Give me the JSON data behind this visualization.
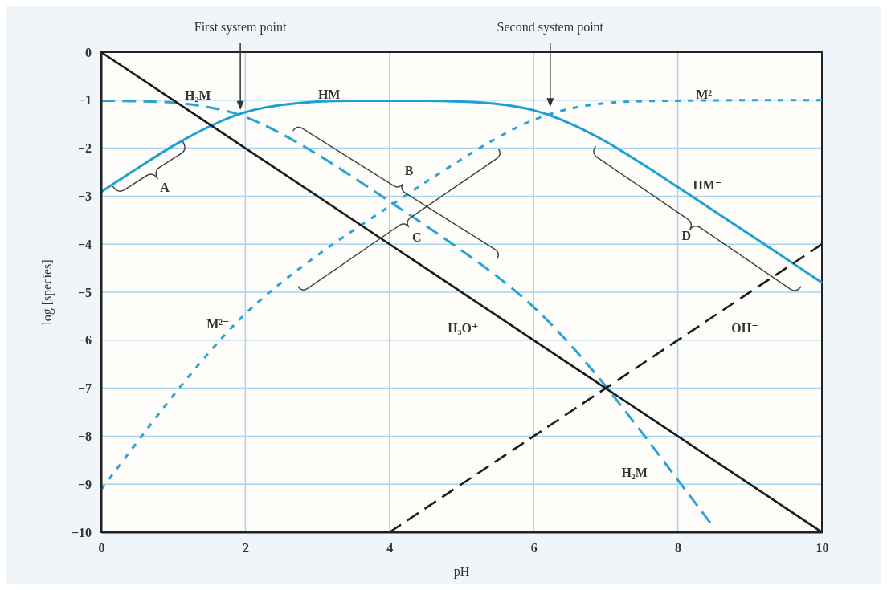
{
  "chart_data": {
    "type": "line",
    "xlabel": "pH",
    "ylabel": "log [species]",
    "xlim": [
      0,
      10
    ],
    "xticks": [
      0,
      2,
      4,
      6,
      8,
      10
    ],
    "ylim": [
      -10,
      0
    ],
    "yticks": [
      0,
      -1,
      -2,
      -3,
      -4,
      -5,
      -6,
      -7,
      -8,
      -9,
      -10
    ],
    "grid": true,
    "series": [
      {
        "name": "H₂M",
        "color": "#2aa3d4",
        "line_style": "dashed",
        "x": [
          0,
          0.5,
          1,
          1.5,
          1.75,
          2,
          2.25,
          2.5,
          3,
          3.5,
          4,
          4.5,
          5,
          5.5,
          6,
          6.25,
          6.5,
          7,
          7.5,
          8,
          8.45
        ],
        "values": [
          -1.01,
          -1.02,
          -1.05,
          -1.15,
          -1.23,
          -1.35,
          -1.51,
          -1.7,
          -2.13,
          -2.61,
          -3.11,
          -3.61,
          -4.13,
          -4.68,
          -5.31,
          -5.68,
          -6.08,
          -6.96,
          -7.92,
          -8.91,
          -9.8
        ]
      },
      {
        "name": "HM⁻",
        "color": "#1f9fd2",
        "line_style": "solid",
        "x": [
          0,
          0.5,
          1,
          1.5,
          1.75,
          2,
          2.25,
          2.5,
          3,
          3.5,
          4,
          4.5,
          5,
          5.5,
          6,
          6.25,
          6.5,
          7,
          7.5,
          8,
          9,
          10
        ],
        "values": [
          -2.91,
          -2.42,
          -1.95,
          -1.55,
          -1.38,
          -1.25,
          -1.16,
          -1.1,
          -1.03,
          -1.01,
          -1.01,
          -1.01,
          -1.03,
          -1.08,
          -1.21,
          -1.33,
          -1.48,
          -1.86,
          -2.32,
          -2.81,
          -3.8,
          -4.8
        ]
      },
      {
        "name": "M²⁻",
        "color": "#2aa3d4",
        "line_style": "dotted",
        "x": [
          0,
          0.5,
          1,
          1.5,
          1.75,
          2,
          2.25,
          2.5,
          3,
          3.5,
          4,
          4.5,
          5,
          5.5,
          6,
          6.25,
          6.5,
          7,
          7.5,
          8,
          9,
          10
        ],
        "values": [
          -9.11,
          -8.12,
          -7.15,
          -6.25,
          -5.83,
          -5.45,
          -5.11,
          -4.8,
          -4.23,
          -3.71,
          -3.21,
          -2.71,
          -2.23,
          -1.78,
          -1.41,
          -1.28,
          -1.18,
          -1.06,
          -1.02,
          -1.01,
          -1.0,
          -1.0
        ]
      },
      {
        "name": "H₃O⁺",
        "color": "#1a1a1a",
        "line_style": "solid",
        "x": [
          0,
          10
        ],
        "values": [
          0,
          -10
        ]
      },
      {
        "name": "OH⁻",
        "color": "#1a1a1a",
        "line_style": "dashed",
        "x": [
          4,
          10
        ],
        "values": [
          -10,
          -4
        ]
      }
    ],
    "annotations": [
      "First system point",
      "Second system point",
      "A",
      "B",
      "C",
      "D"
    ]
  }
}
